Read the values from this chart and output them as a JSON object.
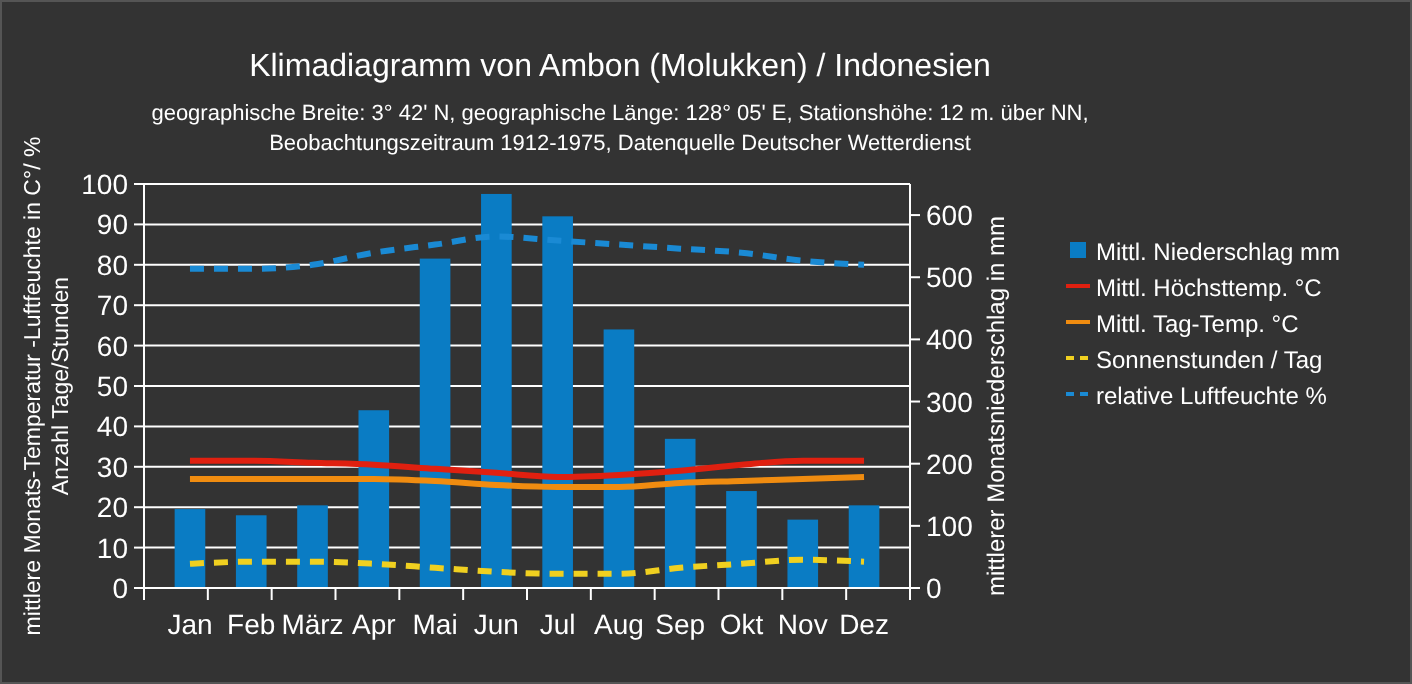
{
  "chart_data": {
    "type": "bar",
    "title": "Klimadiagramm von Ambon (Molukken) / Indonesien",
    "subtitle": "geographische Breite: 3° 42' N, geographische Länge: 128° 05' E, Stationshöhe: 12 m. über NN,\nBeobachtungszeitraum 1912-1975, Datenquelle Deutscher Wetterdienst",
    "ylabel": "mittlere Monats-Temperatur -Luftfeuchte in C°/ %\nAnzahl Tage/Stunden",
    "y2label": "mittlerer Monatsniederschlag in mm",
    "categories": [
      "Jan",
      "Feb",
      "März",
      "Apr",
      "Mai",
      "Jun",
      "Jul",
      "Aug",
      "Sep",
      "Okt",
      "Nov",
      "Dez"
    ],
    "ylim": [
      0,
      100
    ],
    "yticks": [
      0,
      10,
      20,
      30,
      40,
      50,
      60,
      70,
      80,
      90,
      100
    ],
    "y2lim": [
      0,
      650
    ],
    "y2ticks": [
      0,
      100,
      200,
      300,
      400,
      500,
      600
    ],
    "grid": "y",
    "legend": "right",
    "series": [
      {
        "name": "Mittl. Niederschlag mm",
        "axis": "y2",
        "color": "#0a7cc4",
        "values": [
          127,
          117,
          133,
          286,
          530,
          634,
          598,
          416,
          240,
          156,
          110,
          133
        ]
      },
      {
        "name": "Mittl. Höchsttemp. °C",
        "type": "line",
        "line_style": "solid",
        "color": "#e02010",
        "values": [
          31.5,
          31.5,
          31,
          30.5,
          29.5,
          28.5,
          27.5,
          28,
          29,
          30.5,
          31.5,
          31.5
        ]
      },
      {
        "name": "Mittl. Tag-Temp. °C",
        "type": "line",
        "line_style": "solid",
        "color": "#f08c10",
        "values": [
          27,
          27,
          27,
          27,
          26.5,
          25.5,
          25,
          25,
          26,
          26.5,
          27,
          27.5
        ]
      },
      {
        "name": "Sonnenstunden / Tag",
        "type": "line",
        "line_style": "dashed",
        "color": "#f0d020",
        "values": [
          6,
          6.5,
          6.5,
          6,
          5,
          4,
          3.5,
          3.5,
          5,
          6,
          7,
          6.5
        ]
      },
      {
        "name": "relative Luftfeuchte %",
        "type": "line",
        "line_style": "dashed",
        "color": "#1a8ad4",
        "values": [
          79,
          79,
          80,
          83,
          85,
          87,
          86,
          85,
          84,
          83,
          81,
          80
        ]
      }
    ]
  }
}
